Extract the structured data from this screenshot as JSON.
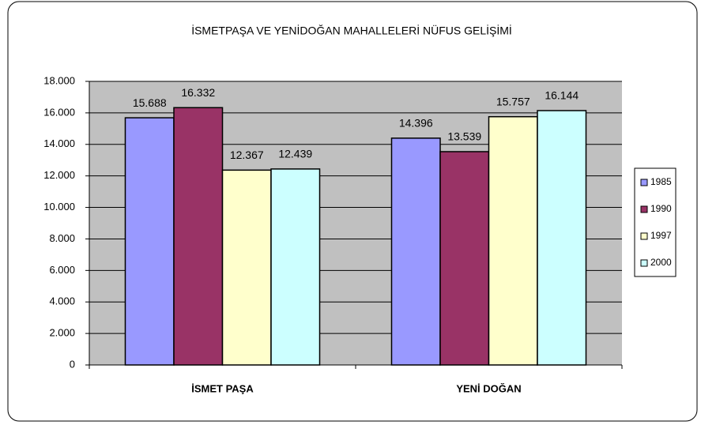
{
  "chart_data": {
    "type": "bar",
    "title": "İSMETPAŞA VE YENİDOĞAN MAHALLELERİ NÜFUS GELİŞİMİ",
    "categories": [
      "İSMET PAŞA",
      "YENİ DOĞAN"
    ],
    "series": [
      {
        "name": "1985",
        "color": "#9999ff",
        "values": [
          15688,
          14396
        ],
        "value_labels": [
          "15.688",
          "14.396"
        ]
      },
      {
        "name": "1990",
        "color": "#993366",
        "values": [
          16332,
          13539
        ],
        "value_labels": [
          "16.332",
          "13.539"
        ]
      },
      {
        "name": "1997",
        "color": "#ffffcc",
        "values": [
          12367,
          15757
        ],
        "value_labels": [
          "12.367",
          "15.757"
        ]
      },
      {
        "name": "2000",
        "color": "#ccffff",
        "values": [
          12439,
          16144
        ],
        "value_labels": [
          "12.439",
          "16.144"
        ]
      }
    ],
    "ylim": [
      0,
      18000
    ],
    "yticks": [
      0,
      {
        "value": 2000,
        "label": "2.000"
      },
      {
        "value": 4000,
        "label": "4.000"
      },
      {
        "value": 6000,
        "label": "6.000"
      },
      {
        "value": 8000,
        "label": "8.000"
      },
      {
        "value": 10000,
        "label": "10.000"
      },
      {
        "value": 12000,
        "label": "12.000"
      },
      {
        "value": 14000,
        "label": "14.000"
      },
      {
        "value": 16000,
        "label": "16.000"
      },
      {
        "value": 18000,
        "label": "18.000"
      }
    ],
    "grid": true,
    "legend": "right"
  }
}
